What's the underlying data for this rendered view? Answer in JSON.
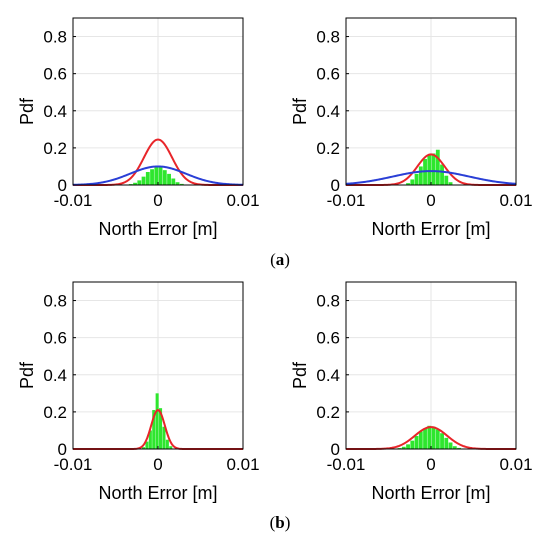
{
  "panel_labels": {
    "a": {
      "open": "(",
      "letter": "a",
      "close": ")"
    },
    "b": {
      "open": "(",
      "letter": "b",
      "close": ")"
    }
  },
  "colors": {
    "histogram": "#2ee62e",
    "red_curve": "#e8262a",
    "blue_curve": "#2a3fd6",
    "grid": "#e6e6e6",
    "axis": "#000000"
  },
  "chart_data": [
    {
      "type": "bar",
      "panel": "a",
      "position": "left",
      "xlabel": "North Error [m]",
      "ylabel": "Pdf",
      "xlim": [
        -0.01,
        0.01
      ],
      "ylim": [
        0,
        0.9
      ],
      "xticks": [
        -0.01,
        0,
        0.01
      ],
      "xtick_labels": [
        "-0.01",
        "0",
        "0.01"
      ],
      "yticks": [
        0,
        0.2,
        0.4,
        0.6,
        0.8
      ],
      "ytick_labels": [
        "0",
        "0.2",
        "0.4",
        "0.6",
        "0.8"
      ],
      "grid": true,
      "histogram": {
        "x": [
          -0.0032,
          -0.0027,
          -0.0022,
          -0.0017,
          -0.0012,
          -0.0007,
          -0.0002,
          0.0003,
          0.0008,
          0.0013,
          0.0018,
          0.0023,
          0.0028
        ],
        "values": [
          0.005,
          0.012,
          0.025,
          0.045,
          0.07,
          0.085,
          0.1,
          0.095,
          0.08,
          0.06,
          0.035,
          0.015,
          0.006
        ]
      },
      "curves": [
        {
          "color": "red",
          "peak": 0.245,
          "mean": 0.0,
          "sigma": 0.00165
        },
        {
          "color": "blue",
          "peak": 0.1,
          "mean": 0.0,
          "sigma": 0.0033
        }
      ]
    },
    {
      "type": "bar",
      "panel": "a",
      "position": "right",
      "xlabel": "North Error [m]",
      "ylabel": "Pdf",
      "xlim": [
        -0.01,
        0.01
      ],
      "ylim": [
        0,
        0.9
      ],
      "xticks": [
        -0.01,
        0,
        0.01
      ],
      "xtick_labels": [
        "-0.01",
        "0",
        "0.01"
      ],
      "yticks": [
        0,
        0.2,
        0.4,
        0.6,
        0.8
      ],
      "ytick_labels": [
        "0",
        "0.2",
        "0.4",
        "0.6",
        "0.8"
      ],
      "grid": true,
      "histogram": {
        "x": [
          -0.0027,
          -0.0022,
          -0.0017,
          -0.0012,
          -0.0007,
          -0.0002,
          0.0003,
          0.0008,
          0.0013,
          0.0018,
          0.0023
        ],
        "values": [
          0.01,
          0.03,
          0.06,
          0.1,
          0.14,
          0.16,
          0.17,
          0.19,
          0.11,
          0.05,
          0.015
        ]
      },
      "curves": [
        {
          "color": "red",
          "peak": 0.165,
          "mean": 0.0,
          "sigma": 0.0016
        },
        {
          "color": "blue",
          "peak": 0.075,
          "mean": 0.0,
          "sigma": 0.0045
        }
      ]
    },
    {
      "type": "bar",
      "panel": "b",
      "position": "left",
      "xlabel": "North Error [m]",
      "ylabel": "Pdf",
      "xlim": [
        -0.01,
        0.01
      ],
      "ylim": [
        0,
        0.9
      ],
      "xticks": [
        -0.01,
        0,
        0.01
      ],
      "xtick_labels": [
        "-0.01",
        "0",
        "0.01"
      ],
      "yticks": [
        0,
        0.2,
        0.4,
        0.6,
        0.8
      ],
      "ytick_labels": [
        "0",
        "0.2",
        "0.4",
        "0.6",
        "0.8"
      ],
      "grid": true,
      "histogram": {
        "x": [
          -0.0017,
          -0.0013,
          -0.0009,
          -0.0005,
          -0.0001,
          0.0003,
          0.0007,
          0.0011,
          0.0015
        ],
        "values": [
          0.01,
          0.04,
          0.1,
          0.21,
          0.3,
          0.22,
          0.12,
          0.05,
          0.015
        ]
      },
      "curves": [
        {
          "color": "red",
          "peak": 0.21,
          "mean": 0.0,
          "sigma": 0.0008
        }
      ]
    },
    {
      "type": "bar",
      "panel": "b",
      "position": "right",
      "xlabel": "North Error [m]",
      "ylabel": "Pdf",
      "xlim": [
        -0.01,
        0.01
      ],
      "ylim": [
        0,
        0.9
      ],
      "xticks": [
        -0.01,
        0,
        0.01
      ],
      "xtick_labels": [
        "-0.01",
        "0",
        "0.01"
      ],
      "yticks": [
        0,
        0.2,
        0.4,
        0.6,
        0.8
      ],
      "ytick_labels": [
        "0",
        "0.2",
        "0.4",
        "0.6",
        "0.8"
      ],
      "grid": true,
      "histogram": {
        "x": [
          -0.0037,
          -0.0032,
          -0.0027,
          -0.0022,
          -0.0017,
          -0.0012,
          -0.0007,
          -0.0002,
          0.0003,
          0.0008,
          0.0013,
          0.0018,
          0.0023,
          0.0028,
          0.0033
        ],
        "values": [
          0.005,
          0.012,
          0.025,
          0.045,
          0.07,
          0.095,
          0.11,
          0.125,
          0.12,
          0.105,
          0.085,
          0.06,
          0.035,
          0.015,
          0.006
        ]
      },
      "curves": [
        {
          "color": "red",
          "peak": 0.118,
          "mean": 0.0,
          "sigma": 0.0019
        }
      ]
    }
  ]
}
